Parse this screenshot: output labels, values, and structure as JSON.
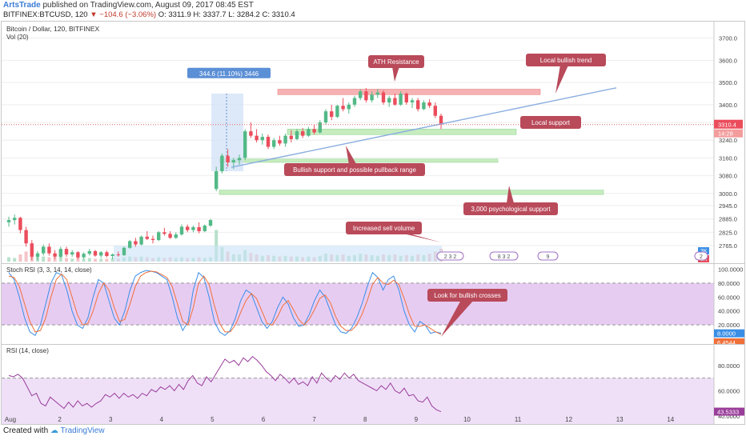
{
  "header": {
    "author": "ArtsTrade",
    "published": "published on TradingView.com, August 09, 2017 08:45 EST",
    "symbol_line": "BITFINEX:BTCUSD, 120",
    "change": "▼ −104.6 (−3.06%)",
    "ohlc": "O: 3311.9  H: 3337.7  L: 3284.2  C: 3310.4"
  },
  "footer": {
    "created_with": "Created with",
    "brand": "TradingView"
  },
  "colors": {
    "up": "#53b987",
    "down": "#eb4d5c",
    "resistance": "#f4a0a0",
    "support": "#b8e8b0",
    "trend": "#8aaee0",
    "callout": "#b94a5a",
    "stoch_k": "#3a8ee6",
    "stoch_d": "#f0703a",
    "rsi": "#9a3d9a"
  },
  "chart_data": [
    {
      "type": "candlestick",
      "title": "Bitcoin / Dollar, 120, BITFINEX",
      "volume_label": "Vol (20)",
      "xlabel": "",
      "ylabel": "",
      "ylim": [
        2700,
        3760
      ],
      "x_ticks": [
        "Aug",
        "2",
        "3",
        "4",
        "5",
        "6",
        "7",
        "8",
        "9",
        "10",
        "11",
        "12",
        "13",
        "14"
      ],
      "y_ticks": [
        "3700.0",
        "3600.0",
        "3500.0",
        "3400.0",
        "3320.0",
        "3240.0",
        "3160.0",
        "3080.0",
        "3000.0",
        "2945.0",
        "2885.0",
        "2825.0",
        "2765.0"
      ],
      "last_price": "3310.4",
      "countdown": "14:28",
      "vol_tags": [
        "3K",
        "1K"
      ],
      "measure_label": "344.6 (11.10%) 3446",
      "zones": [
        {
          "kind": "resistance",
          "from": 3445,
          "to": 3470
        },
        {
          "kind": "support",
          "from": 3265,
          "to": 3290
        },
        {
          "kind": "support",
          "from": 3140,
          "to": 3155
        },
        {
          "kind": "support",
          "from": 2995,
          "to": 3015
        }
      ],
      "annotations": [
        "ATH Resistance",
        "Local bullish trend",
        "Local support",
        "Bullish support and possible pullback range",
        "3,000 psychological support",
        "Increased sell volume"
      ],
      "event_markers": [
        "2 3 2",
        "8 3 2",
        "9",
        "2"
      ],
      "candles": [
        [
          2870,
          2895,
          2850,
          2880
        ],
        [
          2880,
          2905,
          2860,
          2890
        ],
        [
          2890,
          2895,
          2820,
          2835
        ],
        [
          2835,
          2850,
          2760,
          2775
        ],
        [
          2775,
          2790,
          2700,
          2715
        ],
        [
          2715,
          2740,
          2700,
          2730
        ],
        [
          2730,
          2770,
          2720,
          2760
        ],
        [
          2760,
          2775,
          2720,
          2730
        ],
        [
          2730,
          2745,
          2705,
          2715
        ],
        [
          2715,
          2760,
          2710,
          2750
        ],
        [
          2750,
          2760,
          2715,
          2725
        ],
        [
          2725,
          2745,
          2715,
          2735
        ],
        [
          2735,
          2740,
          2705,
          2712
        ],
        [
          2712,
          2735,
          2705,
          2728
        ],
        [
          2728,
          2750,
          2720,
          2740
        ],
        [
          2740,
          2745,
          2715,
          2720
        ],
        [
          2720,
          2740,
          2710,
          2735
        ],
        [
          2735,
          2742,
          2712,
          2718
        ],
        [
          2718,
          2730,
          2705,
          2725
        ],
        [
          2725,
          2738,
          2715,
          2722
        ],
        [
          2722,
          2760,
          2718,
          2755
        ],
        [
          2755,
          2790,
          2750,
          2785
        ],
        [
          2785,
          2800,
          2760,
          2770
        ],
        [
          2770,
          2810,
          2765,
          2805
        ],
        [
          2805,
          2830,
          2790,
          2795
        ],
        [
          2795,
          2810,
          2775,
          2790
        ],
        [
          2790,
          2830,
          2785,
          2825
        ],
        [
          2825,
          2845,
          2810,
          2818
        ],
        [
          2818,
          2830,
          2795,
          2800
        ],
        [
          2800,
          2825,
          2795,
          2815
        ],
        [
          2815,
          2860,
          2810,
          2850
        ],
        [
          2850,
          2860,
          2825,
          2835
        ],
        [
          2835,
          2855,
          2825,
          2848
        ],
        [
          2848,
          2870,
          2820,
          2830
        ],
        [
          2830,
          2860,
          2825,
          2855
        ],
        [
          2855,
          2885,
          2850,
          2880
        ],
        [
          3020,
          3120,
          3010,
          3100
        ],
        [
          3100,
          3180,
          3090,
          3170
        ],
        [
          3170,
          3200,
          3120,
          3140
        ],
        [
          3140,
          3160,
          3110,
          3150
        ],
        [
          3150,
          3175,
          3130,
          3160
        ],
        [
          3160,
          3290,
          3150,
          3280
        ],
        [
          3280,
          3320,
          3250,
          3260
        ],
        [
          3260,
          3290,
          3230,
          3240
        ],
        [
          3240,
          3270,
          3220,
          3255
        ],
        [
          3255,
          3265,
          3200,
          3210
        ],
        [
          3210,
          3250,
          3200,
          3240
        ],
        [
          3240,
          3260,
          3215,
          3225
        ],
        [
          3225,
          3270,
          3210,
          3260
        ],
        [
          3260,
          3285,
          3230,
          3245
        ],
        [
          3245,
          3290,
          3240,
          3280
        ],
        [
          3280,
          3295,
          3250,
          3260
        ],
        [
          3260,
          3300,
          3255,
          3290
        ],
        [
          3290,
          3310,
          3265,
          3275
        ],
        [
          3275,
          3330,
          3270,
          3320
        ],
        [
          3320,
          3380,
          3310,
          3370
        ],
        [
          3370,
          3400,
          3330,
          3345
        ],
        [
          3345,
          3400,
          3340,
          3395
        ],
        [
          3395,
          3430,
          3370,
          3380
        ],
        [
          3380,
          3410,
          3360,
          3400
        ],
        [
          3400,
          3440,
          3390,
          3430
        ],
        [
          3430,
          3470,
          3420,
          3460
        ],
        [
          3460,
          3475,
          3410,
          3420
        ],
        [
          3420,
          3460,
          3410,
          3445
        ],
        [
          3445,
          3470,
          3430,
          3455
        ],
        [
          3455,
          3465,
          3400,
          3410
        ],
        [
          3410,
          3440,
          3390,
          3430
        ],
        [
          3430,
          3450,
          3395,
          3400
        ],
        [
          3400,
          3460,
          3395,
          3450
        ],
        [
          3450,
          3455,
          3400,
          3410
        ],
        [
          3410,
          3430,
          3385,
          3420
        ],
        [
          3420,
          3430,
          3370,
          3380
        ],
        [
          3380,
          3420,
          3375,
          3410
        ],
        [
          3410,
          3425,
          3385,
          3395
        ],
        [
          3395,
          3410,
          3340,
          3350
        ],
        [
          3350,
          3360,
          3290,
          3310
        ]
      ],
      "volumes": [
        0.3,
        0.25,
        0.5,
        0.7,
        0.9,
        0.4,
        0.35,
        0.3,
        0.3,
        0.35,
        0.25,
        0.2,
        0.3,
        0.2,
        0.25,
        0.2,
        0.2,
        0.2,
        0.25,
        0.2,
        0.3,
        0.35,
        0.3,
        0.35,
        0.3,
        0.25,
        0.3,
        0.25,
        0.3,
        0.25,
        0.3,
        0.25,
        0.25,
        0.3,
        0.25,
        0.3,
        2.2,
        1.0,
        0.7,
        0.5,
        0.5,
        0.8,
        0.6,
        0.5,
        0.4,
        0.45,
        0.4,
        0.35,
        0.4,
        0.35,
        0.35,
        0.3,
        0.35,
        0.3,
        0.4,
        0.55,
        0.5,
        0.45,
        0.5,
        0.4,
        0.45,
        0.55,
        0.5,
        0.45,
        0.4,
        0.5,
        0.45,
        0.5,
        0.4,
        0.45,
        0.4,
        0.5,
        0.45,
        0.55,
        0.7,
        0.9
      ]
    },
    {
      "type": "line",
      "title": "Stoch RSI (3, 3, 14, 14, close)",
      "ylim": [
        -5,
        105
      ],
      "y_ticks": [
        "100.0000",
        "80.0000",
        "60.0000",
        "40.0000",
        "20.0000"
      ],
      "band": [
        20,
        80
      ],
      "series": [
        {
          "name": "%K",
          "value_tag": "8.0000",
          "values": [
            95,
            85,
            60,
            30,
            10,
            5,
            20,
            50,
            80,
            95,
            92,
            70,
            40,
            20,
            15,
            30,
            60,
            85,
            80,
            55,
            30,
            20,
            40,
            70,
            90,
            95,
            98,
            97,
            95,
            90,
            85,
            60,
            30,
            12,
            25,
            70,
            95,
            88,
            60,
            25,
            10,
            5,
            12,
            30,
            55,
            70,
            65,
            45,
            25,
            15,
            25,
            45,
            60,
            50,
            30,
            18,
            20,
            35,
            55,
            70,
            60,
            40,
            20,
            10,
            8,
            15,
            30,
            50,
            75,
            95,
            88,
            70,
            85,
            90,
            70,
            40,
            20,
            10,
            25,
            20,
            8,
            10,
            8
          ]
        },
        {
          "name": "%D",
          "value_tag": "6.4544",
          "values": [
            90,
            88,
            75,
            50,
            25,
            10,
            12,
            30,
            60,
            85,
            93,
            85,
            60,
            35,
            20,
            22,
            40,
            65,
            80,
            70,
            45,
            25,
            28,
            50,
            75,
            90,
            95,
            97,
            96,
            92,
            88,
            75,
            50,
            25,
            20,
            45,
            80,
            90,
            78,
            48,
            22,
            10,
            10,
            20,
            38,
            55,
            65,
            58,
            40,
            22,
            20,
            32,
            48,
            55,
            42,
            28,
            20,
            28,
            42,
            58,
            63,
            52,
            32,
            18,
            12,
            12,
            20,
            35,
            55,
            78,
            88,
            80,
            78,
            84,
            78,
            58,
            35,
            18,
            18,
            20,
            15,
            10,
            6.5
          ]
        }
      ]
    },
    {
      "type": "line",
      "title": "RSI (14, close)",
      "ylim": [
        35,
        95
      ],
      "y_ticks": [
        "80.0000",
        "60.0000",
        "40.0000"
      ],
      "band": [
        30,
        70
      ],
      "series": [
        {
          "name": "RSI",
          "value_tag": "43.5333",
          "values": [
            72,
            71,
            73,
            70,
            63,
            56,
            58,
            50,
            48,
            55,
            52,
            49,
            46,
            51,
            47,
            52,
            48,
            50,
            47,
            50,
            52,
            57,
            55,
            58,
            54,
            58,
            55,
            57,
            54,
            58,
            56,
            61,
            59,
            63,
            61,
            64,
            60,
            65,
            61,
            68,
            72,
            66,
            64,
            71,
            67,
            73,
            79,
            85,
            82,
            84,
            80,
            86,
            83,
            87,
            84,
            80,
            75,
            72,
            68,
            73,
            70,
            66,
            70,
            65,
            67,
            64,
            71,
            66,
            74,
            70,
            67,
            72,
            69,
            74,
            70,
            73,
            68,
            66,
            64,
            62,
            60,
            64,
            61,
            66,
            60,
            58,
            62,
            56,
            57,
            52,
            51,
            55,
            48,
            45,
            43.5
          ]
        }
      ]
    }
  ]
}
